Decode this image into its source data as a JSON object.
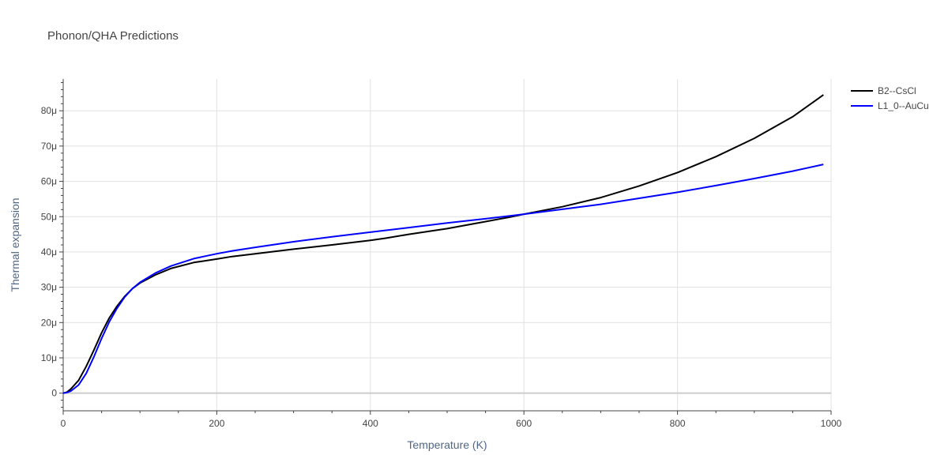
{
  "chart_data": {
    "type": "line",
    "title": "Phonon/QHA Predictions",
    "xlabel": "Temperature (K)",
    "ylabel": "Thermal expansion",
    "xlim": [
      0,
      1000
    ],
    "ylim": [
      -5,
      89
    ],
    "grid": true,
    "legend_position": "top-right",
    "x_ticks": [
      {
        "value": 0,
        "label": "0"
      },
      {
        "value": 200,
        "label": "200"
      },
      {
        "value": 400,
        "label": "400"
      },
      {
        "value": 600,
        "label": "600"
      },
      {
        "value": 800,
        "label": "800"
      },
      {
        "value": 1000,
        "label": "1000"
      }
    ],
    "y_ticks": [
      {
        "value": 0,
        "label": "0"
      },
      {
        "value": 10,
        "label": "10μ"
      },
      {
        "value": 20,
        "label": "20μ"
      },
      {
        "value": 30,
        "label": "30μ"
      },
      {
        "value": 40,
        "label": "40μ"
      },
      {
        "value": 50,
        "label": "50μ"
      },
      {
        "value": 60,
        "label": "60μ"
      },
      {
        "value": 70,
        "label": "70μ"
      },
      {
        "value": 80,
        "label": "80μ"
      }
    ],
    "series": [
      {
        "name": "B2--CsCl",
        "color": "#000000",
        "x": [
          0,
          5,
          10,
          20,
          30,
          40,
          50,
          60,
          70,
          80,
          90,
          100,
          120,
          140,
          170,
          200,
          220,
          250,
          300,
          350,
          400,
          420,
          450,
          500,
          550,
          580,
          600,
          650,
          700,
          750,
          800,
          850,
          900,
          950,
          990
        ],
        "y": [
          0,
          0.3,
          1.2,
          3.6,
          7.6,
          12.2,
          17.1,
          21.3,
          24.6,
          27.4,
          29.6,
          31.2,
          33.5,
          35.3,
          37.0,
          38.0,
          38.7,
          39.5,
          40.8,
          42.0,
          43.3,
          43.9,
          45.0,
          46.6,
          48.6,
          49.8,
          50.7,
          52.8,
          55.4,
          58.7,
          62.5,
          67.0,
          72.2,
          78.3,
          84.5
        ]
      },
      {
        "name": "L1_0--AuCu",
        "color": "#0000ff",
        "x": [
          0,
          5,
          10,
          20,
          30,
          40,
          50,
          60,
          70,
          80,
          90,
          100,
          120,
          140,
          170,
          200,
          220,
          250,
          300,
          350,
          400,
          450,
          500,
          550,
          600,
          650,
          700,
          750,
          800,
          850,
          900,
          950,
          990
        ],
        "y": [
          0,
          0.2,
          0.6,
          2.3,
          5.6,
          10.3,
          15.5,
          20.2,
          24.0,
          27.2,
          29.6,
          31.4,
          34.0,
          36.0,
          38.1,
          39.5,
          40.3,
          41.3,
          42.9,
          44.3,
          45.6,
          46.9,
          48.2,
          49.4,
          50.7,
          52.1,
          53.5,
          55.2,
          56.9,
          58.8,
          60.8,
          62.9,
          64.8
        ]
      }
    ]
  }
}
